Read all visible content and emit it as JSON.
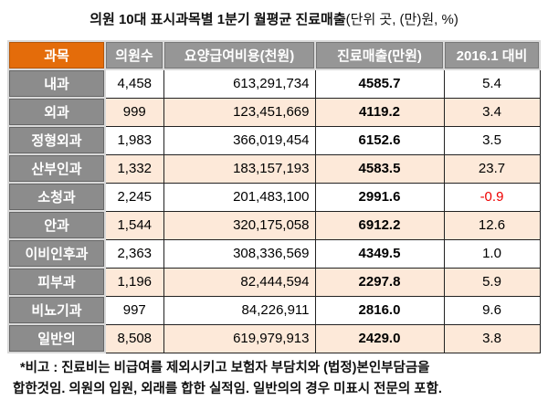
{
  "title": {
    "main": "의원 10대 표시과목별 1분기 월평균 진료매출",
    "unit": "(단위 곳, (만)원, %)"
  },
  "table": {
    "headers": [
      "과목",
      "의원수",
      "요양급여비용(천원)",
      "진료매출(만원)",
      "2016.1 대비"
    ],
    "rows": [
      [
        "내과",
        "4,458",
        "613,291,734",
        "4585.7",
        "5.4"
      ],
      [
        "외과",
        "999",
        "123,451,669",
        "4119.2",
        "3.4"
      ],
      [
        "정형외과",
        "1,983",
        "366,019,454",
        "6152.6",
        "3.5"
      ],
      [
        "산부인과",
        "1,332",
        "183,157,193",
        "4583.5",
        "23.7"
      ],
      [
        "소청과",
        "2,245",
        "201,483,100",
        "2991.6",
        "-0.9"
      ],
      [
        "안과",
        "1,544",
        "320,175,058",
        "6912.2",
        "12.6"
      ],
      [
        "이비인후과",
        "2,363",
        "308,336,569",
        "4349.5",
        "1.0"
      ],
      [
        "피부과",
        "1,196",
        "82,444,594",
        "2297.8",
        "5.9"
      ],
      [
        "비뇨기과",
        "997",
        "84,226,911",
        "2816.0",
        "9.6"
      ],
      [
        "일반의",
        "8,508",
        "619,979,913",
        "2429.0",
        "3.8"
      ]
    ]
  },
  "note": {
    "line1": "*비고 : 진료비는 비급여를 제외시키고 보험자 부담치와 (법정)본인부담금을",
    "line2": "합한것임. 의원의 입원, 외래를 합한 실적임. 일반의의 경우 미표시 전문의 포함."
  }
}
